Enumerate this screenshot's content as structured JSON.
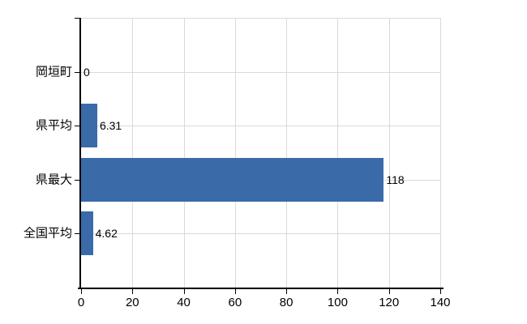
{
  "chart_data": {
    "type": "bar",
    "orientation": "horizontal",
    "title": "",
    "xlabel": "",
    "ylabel": "",
    "categories": [
      "岡垣町",
      "県平均",
      "県最大",
      "全国平均"
    ],
    "values": [
      0,
      6.31,
      118,
      4.62
    ],
    "value_labels": [
      "0",
      "6.31",
      "118",
      "4.62"
    ],
    "xlim": [
      0,
      140
    ],
    "xticks": [
      0,
      20,
      40,
      60,
      80,
      100,
      120,
      140
    ],
    "xtick_labels": [
      "0",
      "20",
      "40",
      "60",
      "80",
      "100",
      "120",
      "140"
    ],
    "grid": true,
    "legend": false,
    "colors": {
      "bar": "#3b6aa9",
      "gridline": "#d9d9d9",
      "axis": "#000000",
      "text": "#000000",
      "background": "#ffffff"
    }
  }
}
